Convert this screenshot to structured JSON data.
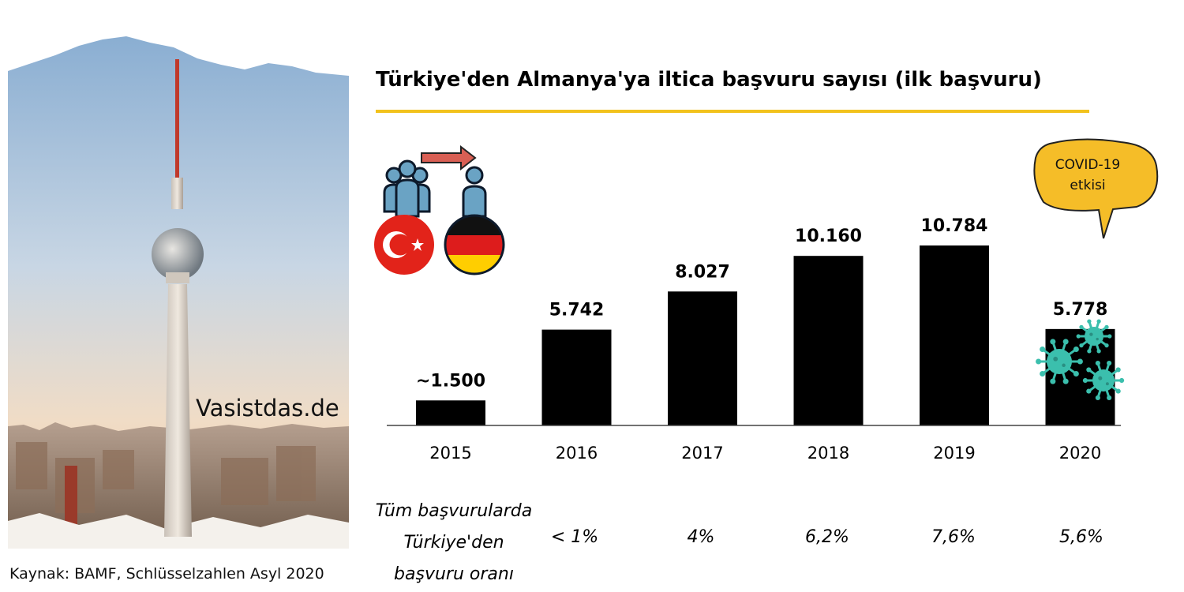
{
  "brand": "Vasistdas.de",
  "source": "Kaynak: BAMF, Schlüsselzahlen Asyl 2020",
  "covid_note": {
    "line1": "COVID-19",
    "line2": "etkisi"
  },
  "share_row": {
    "label_lines": [
      "Tüm başvurularda",
      "Türkiye'den",
      "başvuru oranı"
    ],
    "values": [
      "< 1%",
      "4%",
      "6,2%",
      "7,6%",
      "5,6%"
    ]
  },
  "colors": {
    "bar": "#000000",
    "accent_yellow": "#f2c21c",
    "bubble": "#f5bd28",
    "virus": "#3bbfad"
  },
  "icons": [
    "people-migration-icon",
    "turkey-flag-icon",
    "germany-flag-icon",
    "arrow-right-icon",
    "virus-icon"
  ],
  "chart_data": {
    "type": "bar",
    "title": "Türkiye'den Almanya'ya iltica başvuru sayısı (ilk başvuru)",
    "categories": [
      "2015",
      "2016",
      "2017",
      "2018",
      "2019",
      "2020"
    ],
    "values": [
      1500,
      5742,
      8027,
      10160,
      10784,
      5778
    ],
    "labels": [
      "~1.500",
      "5.742",
      "8.027",
      "10.160",
      "10.784",
      "5.778"
    ],
    "xlabel": "",
    "ylabel": "",
    "ylim": [
      0,
      12000
    ],
    "grid": false
  }
}
